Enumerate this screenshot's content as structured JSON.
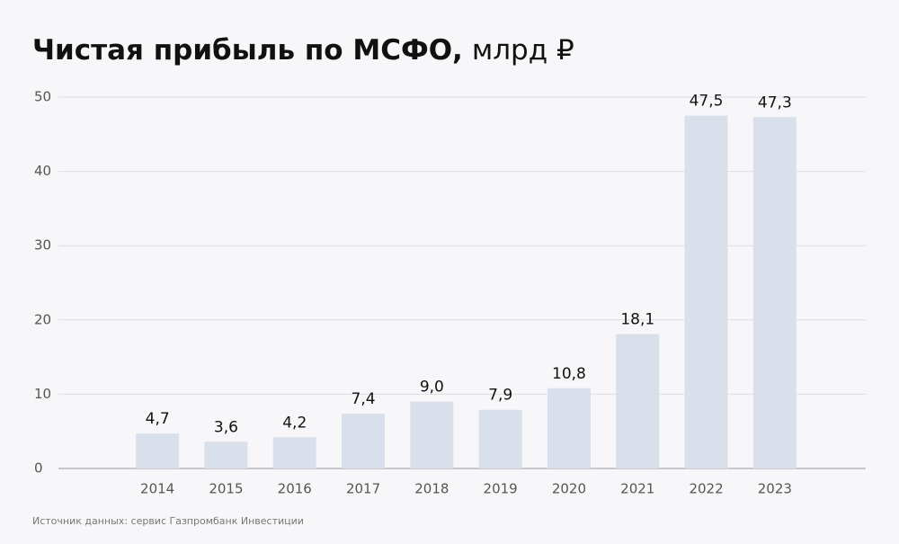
{
  "chart_data": {
    "type": "bar",
    "title": "Чистая прибыль по МСФО,",
    "title_unit": "млрд ₽",
    "source": "Источник данных: сервис Газпромбанк Инвестиции",
    "categories": [
      "2014",
      "2015",
      "2016",
      "2017",
      "2018",
      "2019",
      "2020",
      "2021",
      "2022",
      "2023"
    ],
    "values": [
      4.7,
      3.6,
      4.2,
      7.4,
      9.0,
      7.9,
      10.8,
      18.1,
      47.5,
      47.3
    ],
    "value_labels": [
      "4,7",
      "3,6",
      "4,2",
      "7,4",
      "9,0",
      "7,9",
      "10,8",
      "18,1",
      "47,5",
      "47,3"
    ],
    "color": "#d9dfeb",
    "ylim": [
      0,
      50
    ],
    "yticks": [
      0,
      10,
      20,
      30,
      40,
      50
    ],
    "grid": true
  }
}
